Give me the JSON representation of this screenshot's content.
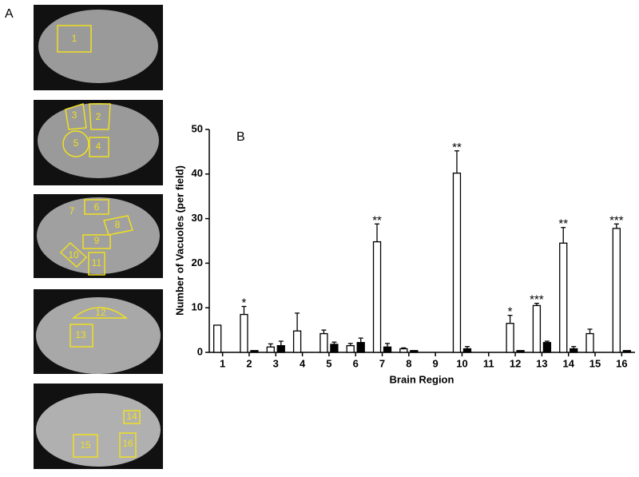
{
  "panel_a": {
    "label": "A",
    "images": [
      {
        "regions": [
          "1"
        ]
      },
      {
        "regions": [
          "3",
          "2",
          "5",
          "4"
        ]
      },
      {
        "regions": [
          "7",
          "6",
          "8",
          "9",
          "10",
          "11"
        ]
      },
      {
        "regions": [
          "12",
          "13"
        ]
      },
      {
        "regions": [
          "14",
          "15",
          "16"
        ]
      }
    ]
  },
  "chart_data": {
    "type": "bar",
    "panel_label": "B",
    "x_label": "Brain Region",
    "y_label": "Number of Vacuoles  (per field)",
    "categories": [
      "1",
      "2",
      "3",
      "4",
      "5",
      "6",
      "7",
      "8",
      "9",
      "10",
      "11",
      "12",
      "13",
      "14",
      "15",
      "16"
    ],
    "series": [
      {
        "color": "#ffffff",
        "values": [
          6.1,
          8.5,
          1.2,
          4.8,
          4.2,
          1.5,
          24.8,
          0.8,
          0,
          40.2,
          0,
          6.5,
          10.5,
          24.5,
          4.2,
          27.8
        ],
        "errors": [
          0,
          1.8,
          0.7,
          4.0,
          0.8,
          0.5,
          4.0,
          0.2,
          0,
          5.0,
          0,
          1.8,
          0.5,
          3.5,
          1.0,
          1.0
        ]
      },
      {
        "color": "#000000",
        "values": [
          0,
          0.4,
          1.5,
          0,
          1.8,
          2.2,
          1.2,
          0.4,
          0,
          0.8,
          0,
          0.4,
          2.2,
          0.8,
          0,
          0.4
        ],
        "errors": [
          0,
          0,
          1.0,
          0,
          0.5,
          1.0,
          0.8,
          0,
          0,
          0.5,
          0,
          0,
          0.3,
          0.5,
          0,
          0
        ]
      }
    ],
    "annotations": [
      {
        "text": "*",
        "category": "2"
      },
      {
        "text": "**",
        "category": "7"
      },
      {
        "text": "**",
        "category": "10"
      },
      {
        "text": "*",
        "category": "12"
      },
      {
        "text": "***",
        "category": "13"
      },
      {
        "text": "**",
        "category": "14"
      },
      {
        "text": "***",
        "category": "16"
      }
    ],
    "ylim": [
      0,
      50
    ],
    "yticks": [
      0,
      10,
      20,
      30,
      40,
      50
    ]
  }
}
